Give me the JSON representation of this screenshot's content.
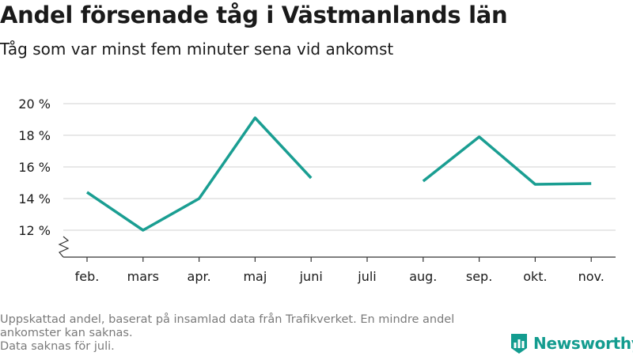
{
  "header": {
    "title": "Andel försenade tåg i Västmanlands län",
    "subtitle": "Tåg som var minst fem minuter sena vid ankomst"
  },
  "footer": {
    "source_line1": "Uppskattad andel, baserat på insamlad data från Trafikverket. En mindre andel ankomster kan saknas.",
    "source_line2": "Data saknas för juli.",
    "logo_text": "Newsworthy"
  },
  "colors": {
    "series": "#1a9e92",
    "grid": "#d9d9d9",
    "axis": "#333333",
    "brand": "#139c8f"
  },
  "chart_data": {
    "type": "line",
    "title": "Andel försenade tåg i Västmanlands län",
    "subtitle": "Tåg som var minst fem minuter sena vid ankomst",
    "xlabel": "",
    "ylabel": "",
    "categories": [
      "feb.",
      "mars",
      "apr.",
      "maj",
      "juni",
      "juli",
      "aug.",
      "sep.",
      "okt.",
      "nov."
    ],
    "series": [
      {
        "values": [
          14.4,
          12.0,
          14.0,
          19.1,
          15.3,
          null,
          15.1,
          17.9,
          14.9,
          14.95
        ]
      }
    ],
    "y_ticks": [
      12,
      14,
      16,
      18,
      20
    ],
    "y_tick_labels": [
      "12 %",
      "14 %",
      "16 %",
      "18 %",
      "20 %"
    ],
    "ylim": [
      12,
      20
    ],
    "y_axis_break": true,
    "grid": true,
    "legend": "none"
  }
}
